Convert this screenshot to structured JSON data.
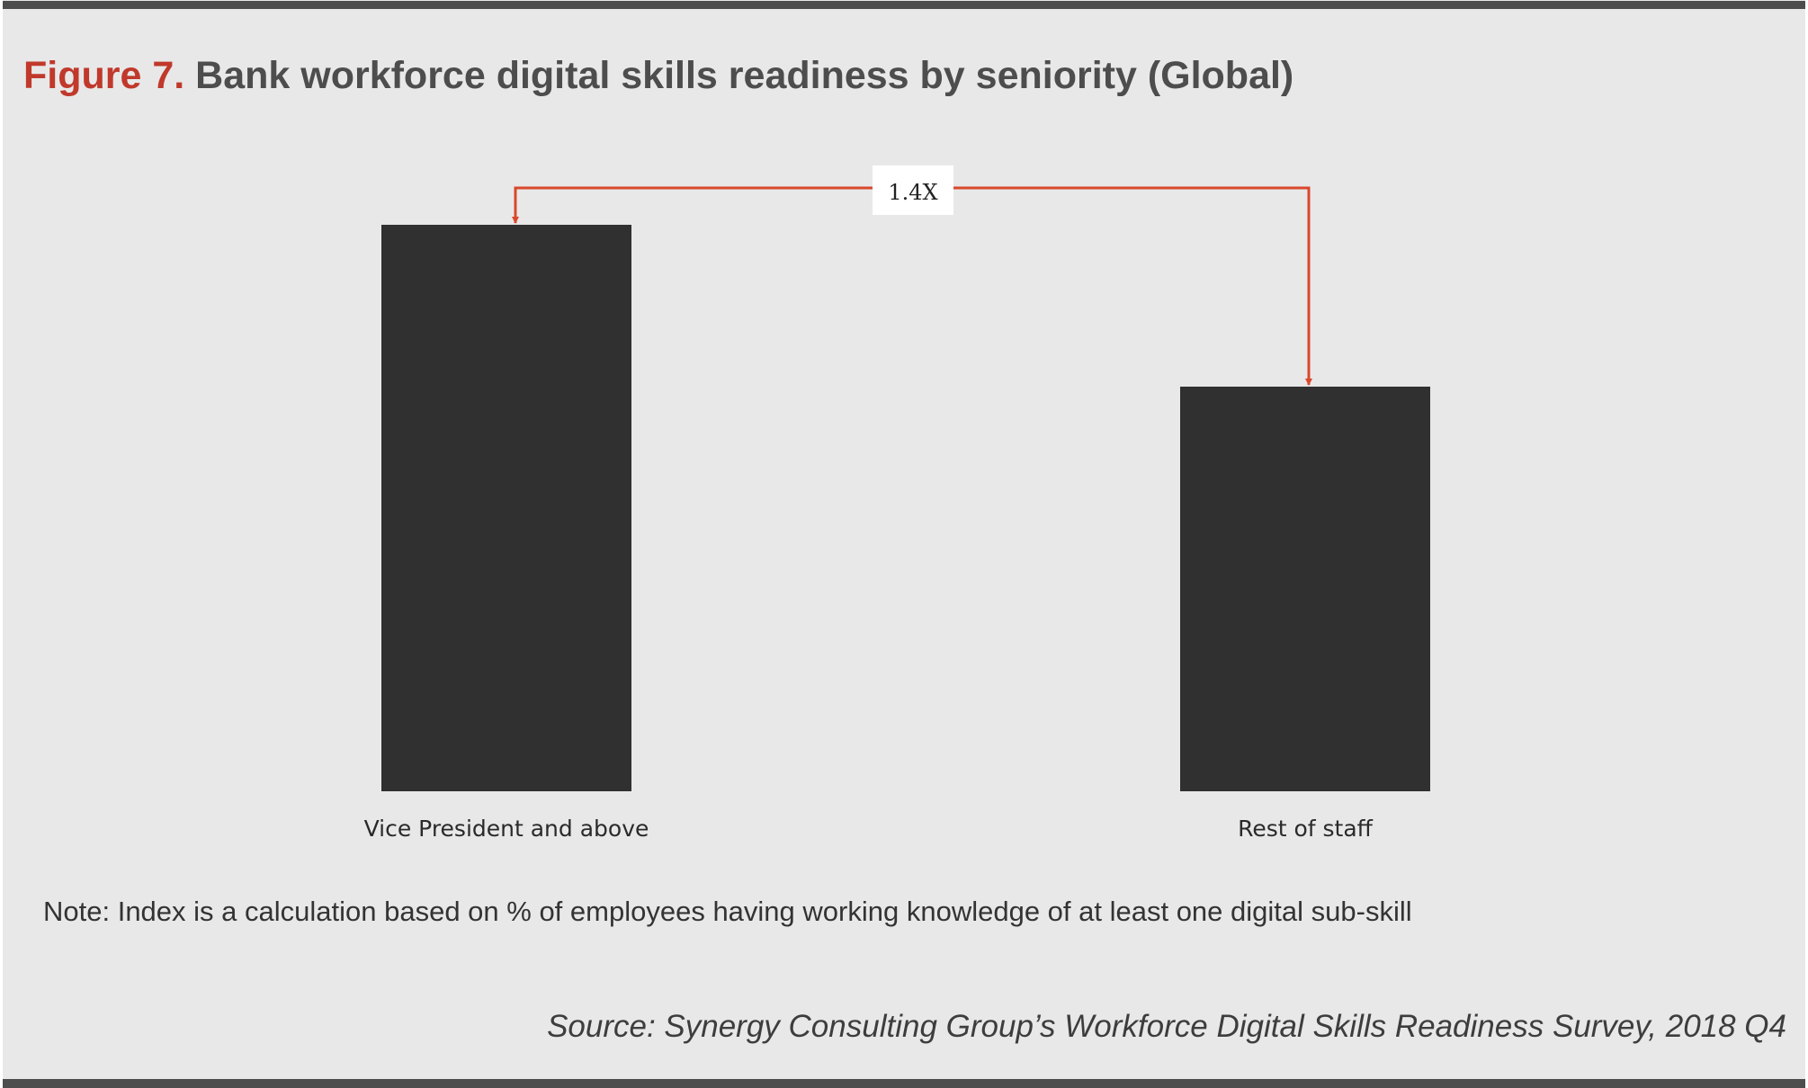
{
  "figure": {
    "label": "Figure 7.",
    "title": "Bank workforce digital skills readiness by seniority (Global)",
    "note": "Note: Index is a calculation based on % of employees having working knowledge of at least one digital sub-skill",
    "source": "Source: Synergy Consulting Group’s Workforce Digital Skills Readiness Survey, 2018 Q4"
  },
  "colors": {
    "bar": "#303030",
    "accent": "#d9482b",
    "title_label": "#c0392b",
    "title_text": "#4d4d4d",
    "background": "#e8e8e8"
  },
  "chart_data": {
    "type": "bar",
    "title": "Bank workforce digital skills readiness by seniority (Global)",
    "categories": [
      "Vice President and above",
      "Rest of staff"
    ],
    "values": [
      1.4,
      1.0
    ],
    "ylim": [
      0,
      1.4
    ],
    "xlabel": "",
    "ylabel": "",
    "grid": false,
    "legend": "none",
    "annotations": [
      {
        "text": "1.4X",
        "from": "Rest of staff",
        "to": "Vice President and above"
      }
    ]
  }
}
